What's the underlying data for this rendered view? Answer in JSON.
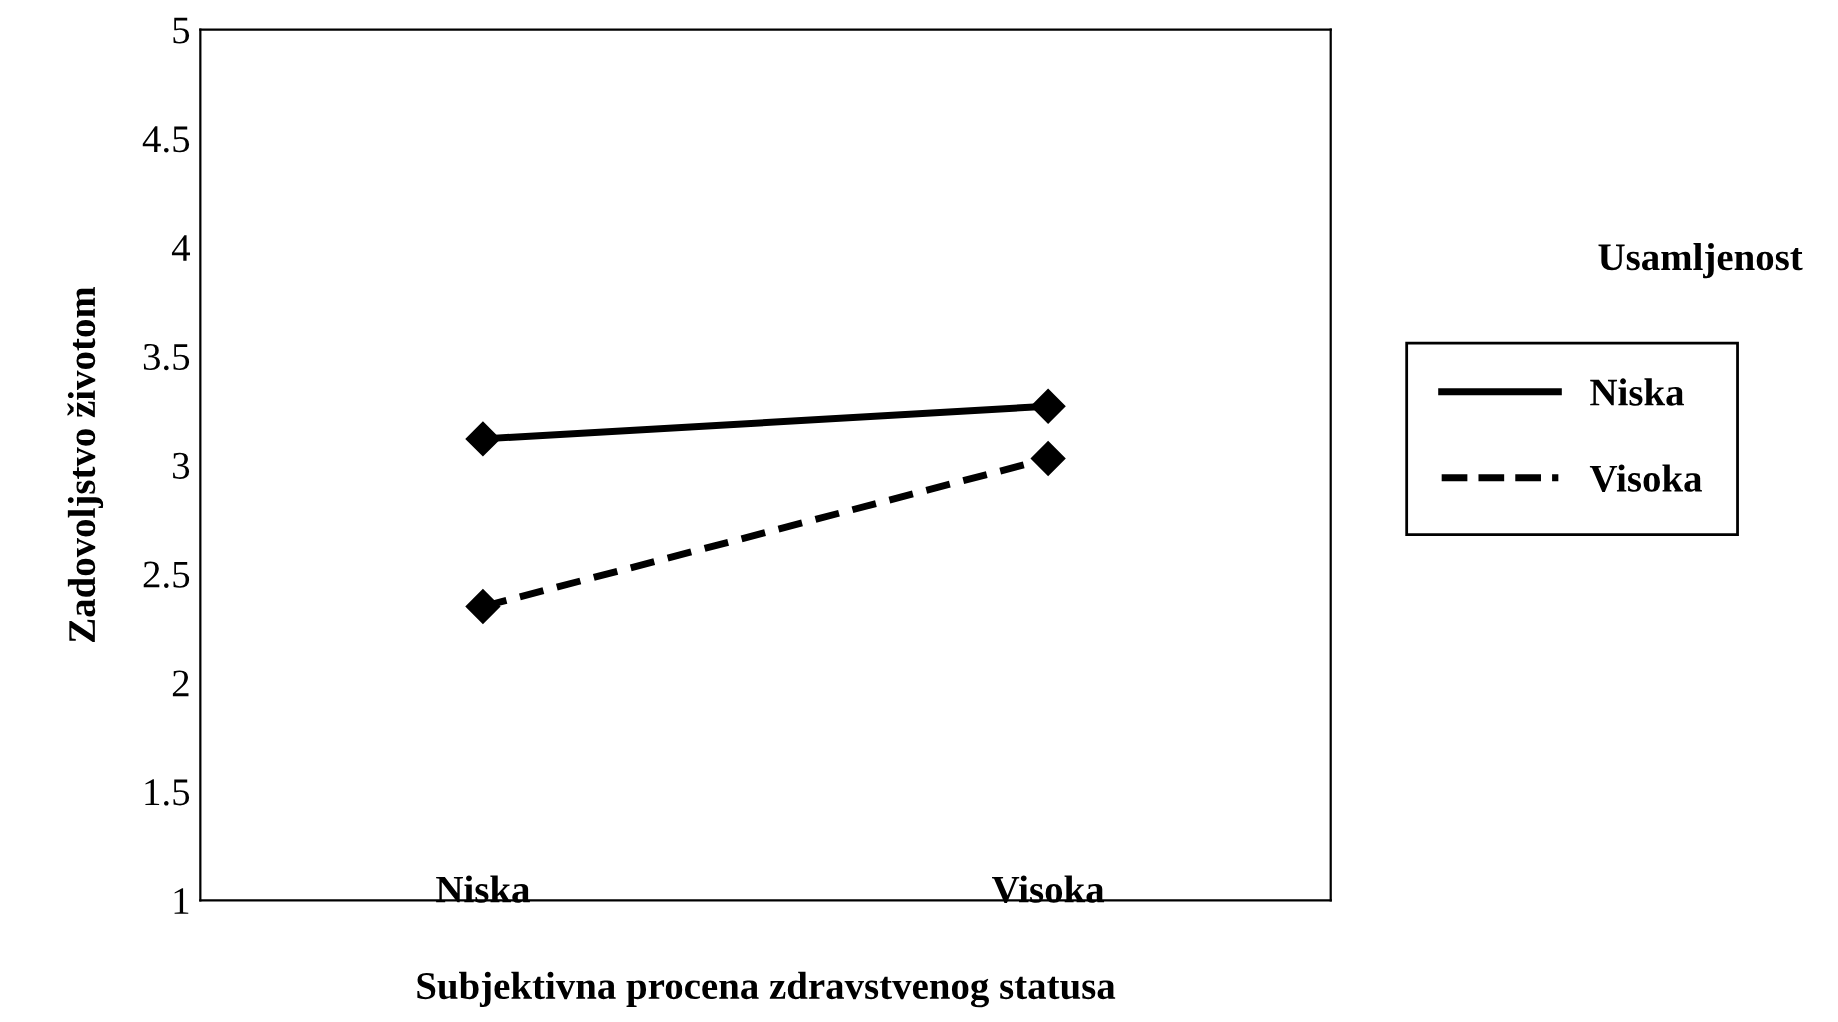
{
  "chart_data": {
    "type": "line",
    "xlabel": "Subjektivna procena zdravstvenog statusa",
    "ylabel": "Zadovoljstvo životom",
    "legend_title": "Usamljenost",
    "categories": [
      "Niska",
      "Visoka"
    ],
    "series": [
      {
        "name": "Niska",
        "color": "#000000",
        "line_style": "solid",
        "values": [
          3.12,
          3.27
        ]
      },
      {
        "name": "Visoka",
        "color": "#000000",
        "line_style": "dashed",
        "values": [
          2.35,
          3.03
        ]
      }
    ],
    "ylim": [
      1,
      5
    ],
    "yticks": [
      1,
      1.5,
      2,
      2.5,
      3,
      3.5,
      4,
      4.5,
      5
    ],
    "marker": "diamond",
    "grid": false,
    "legend": "right"
  }
}
